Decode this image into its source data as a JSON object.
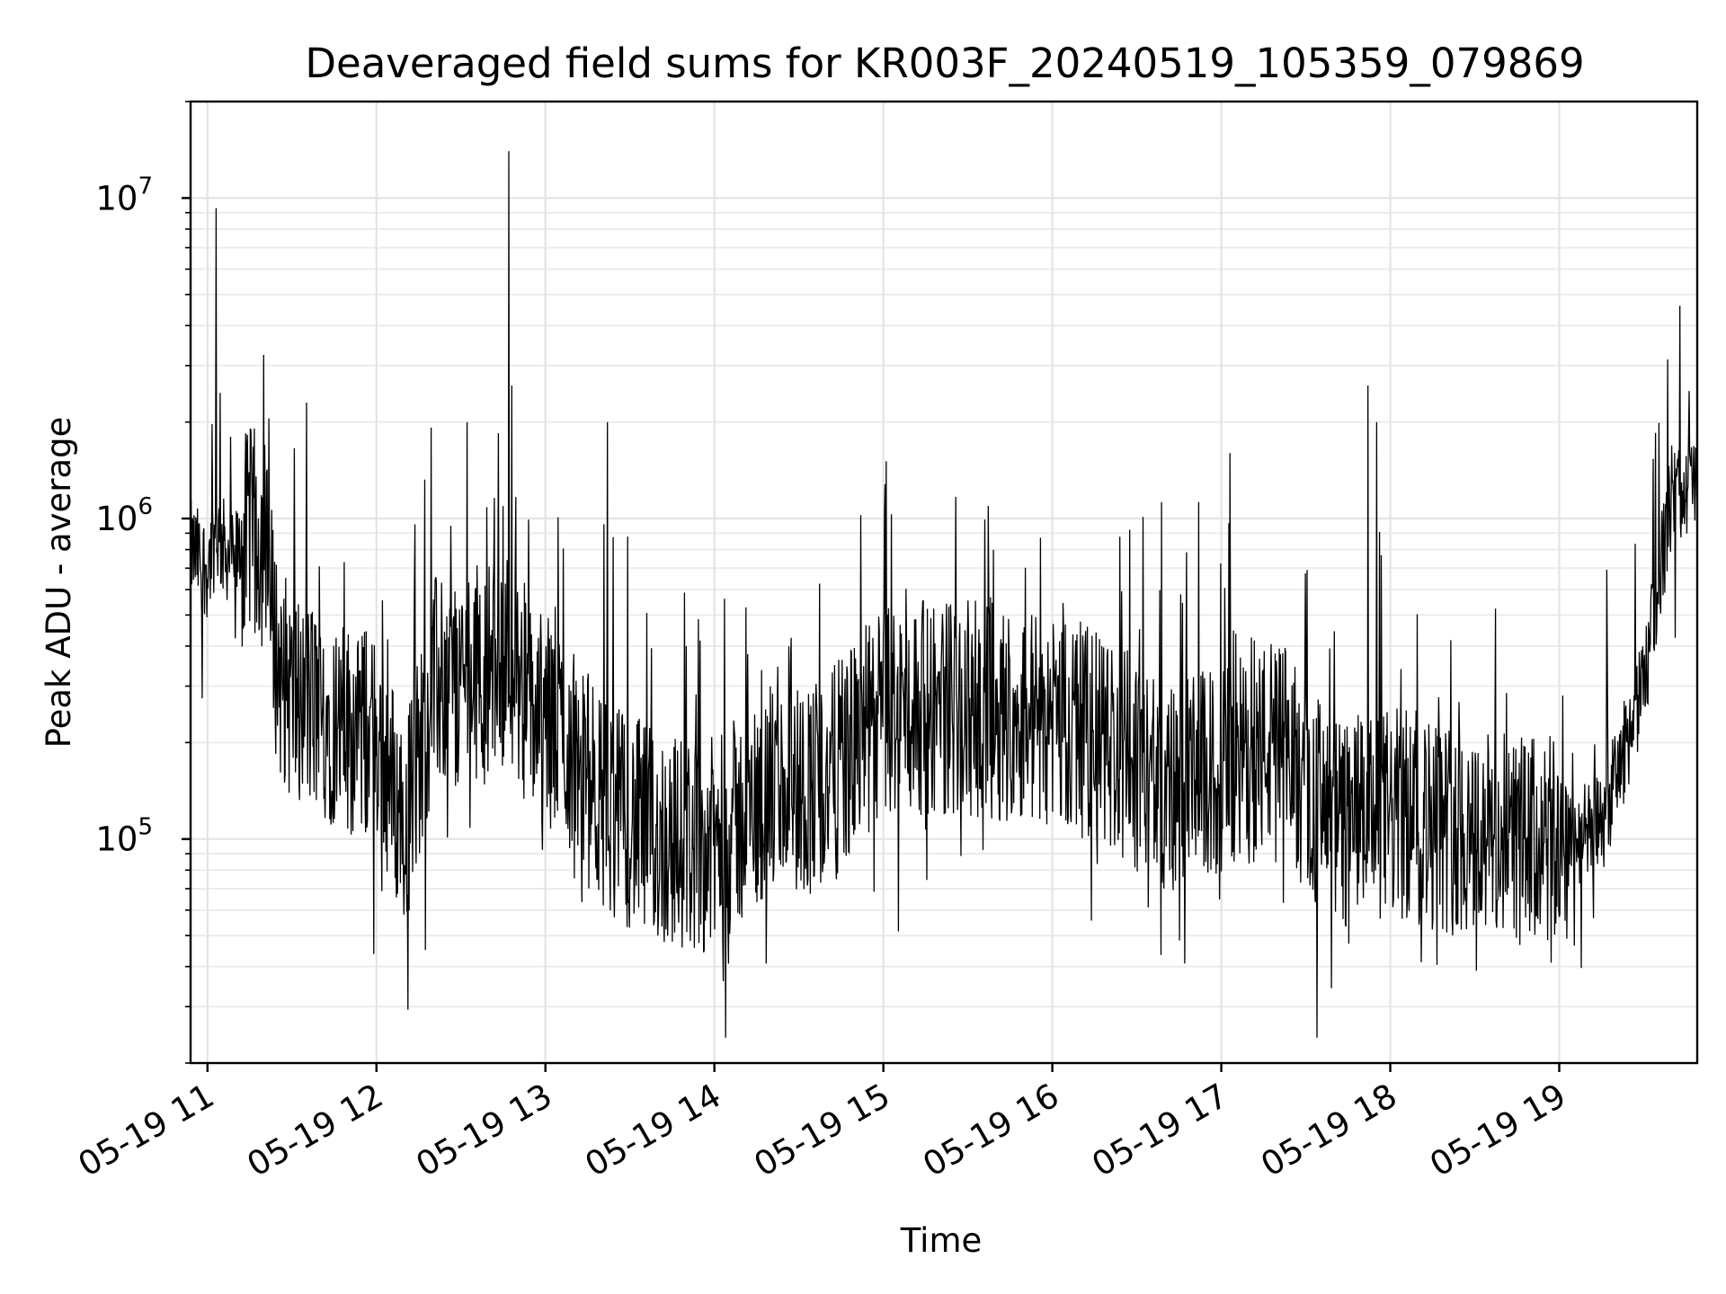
{
  "chart_data": {
    "type": "line",
    "title": "Deaveraged field sums for KR003F_20240519_105359_079869",
    "xlabel": "Time",
    "ylabel": "Peak ADU - average",
    "yscale": "log",
    "ylim": [
      20000,
      20000000
    ],
    "xlim": [
      "2024-05-19T10:54",
      "2024-05-19T19:49"
    ],
    "grid": true,
    "x_ticks": [
      "05-19 11",
      "05-19 12",
      "05-19 13",
      "05-19 14",
      "05-19 15",
      "05-19 16",
      "05-19 17",
      "05-19 18",
      "05-19 19"
    ],
    "y_ticks": [
      {
        "base": "10",
        "exp": "5",
        "value": 100000
      },
      {
        "base": "10",
        "exp": "6",
        "value": 1000000
      },
      {
        "base": "10",
        "exp": "7",
        "value": 10000000
      }
    ],
    "series_color": "#000000",
    "series": [
      {
        "x": [
          "2024-05-19T10:54",
          "2024-05-19T10:57",
          "2024-05-19T11:00",
          "2024-05-19T11:03",
          "2024-05-19T11:06",
          "2024-05-19T11:10",
          "2024-05-19T11:15",
          "2024-05-19T11:20",
          "2024-05-19T11:25",
          "2024-05-19T11:30",
          "2024-05-19T11:40",
          "2024-05-19T11:50",
          "2024-05-19T12:00",
          "2024-05-19T12:10",
          "2024-05-19T12:20",
          "2024-05-19T12:30",
          "2024-05-19T12:40",
          "2024-05-19T12:47",
          "2024-05-19T12:55",
          "2024-05-19T13:05",
          "2024-05-19T13:20",
          "2024-05-19T13:40",
          "2024-05-19T14:00",
          "2024-05-19T14:20",
          "2024-05-19T14:40",
          "2024-05-19T15:00",
          "2024-05-19T15:20",
          "2024-05-19T15:40",
          "2024-05-19T16:00",
          "2024-05-19T16:20",
          "2024-05-19T16:40",
          "2024-05-19T17:00",
          "2024-05-19T17:20",
          "2024-05-19T17:40",
          "2024-05-19T18:00",
          "2024-05-19T18:20",
          "2024-05-19T18:40",
          "2024-05-19T19:00",
          "2024-05-19T19:15",
          "2024-05-19T19:30",
          "2024-05-19T19:40",
          "2024-05-19T19:49"
        ],
        "y": [
          800000,
          750000,
          700000,
          900000,
          800000,
          750000,
          900000,
          850000,
          350000,
          280000,
          250000,
          220000,
          210000,
          110000,
          300000,
          320000,
          350000,
          380000,
          250000,
          220000,
          130000,
          100000,
          95000,
          140000,
          150000,
          250000,
          260000,
          250000,
          240000,
          200000,
          140000,
          160000,
          200000,
          110000,
          120000,
          110000,
          100000,
          95000,
          110000,
          300000,
          1200000,
          1300000
        ],
        "spikes": [
          {
            "x": "2024-05-19T11:03",
            "y": 9300000
          },
          {
            "x": "2024-05-19T12:47",
            "y": 14000000
          },
          {
            "x": "2024-05-19T12:48",
            "y": 2600000
          },
          {
            "x": "2024-05-19T11:35",
            "y": 2300000
          },
          {
            "x": "2024-05-19T12:32",
            "y": 2000000
          },
          {
            "x": "2024-05-19T13:22",
            "y": 2000000
          },
          {
            "x": "2024-05-19T17:03",
            "y": 1600000
          },
          {
            "x": "2024-05-19T17:52",
            "y": 2600000
          },
          {
            "x": "2024-05-19T17:55",
            "y": 2000000
          },
          {
            "x": "2024-05-19T19:46",
            "y": 2500000
          },
          {
            "x": "2024-05-19T19:49",
            "y": 4400000
          }
        ]
      }
    ]
  }
}
